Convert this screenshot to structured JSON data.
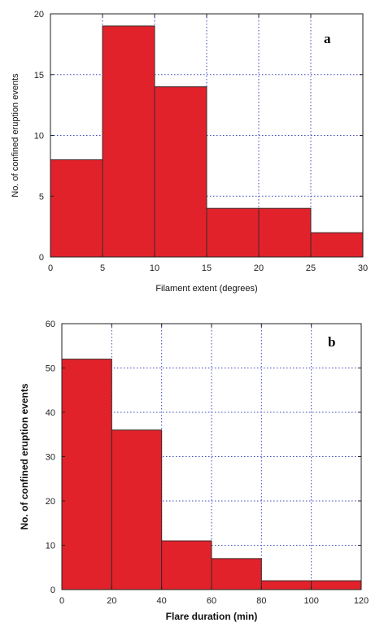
{
  "colors": {
    "bar_fill": "#e2222b",
    "bar_stroke": "#3a2a2a",
    "grid": "#3a48b8",
    "frame": "#222222"
  },
  "chart_data": [
    {
      "type": "bar",
      "panel_label": "a",
      "bin_edges": [
        0,
        5,
        10,
        15,
        20,
        25,
        30
      ],
      "values": [
        8,
        19,
        14,
        4,
        4,
        2
      ],
      "xlabel": "Filament extent (degrees)",
      "ylabel": "No. of confined eruption events",
      "xlim": [
        0,
        30
      ],
      "ylim": [
        0,
        20
      ],
      "xticks": [
        0,
        5,
        10,
        15,
        20,
        25,
        30
      ],
      "yticks": [
        0,
        5,
        10,
        15,
        20
      ],
      "grid": true,
      "grid_style": "dotted"
    },
    {
      "type": "bar",
      "panel_label": "b",
      "bin_edges": [
        0,
        20,
        40,
        60,
        80,
        100,
        120
      ],
      "values": [
        52,
        36,
        11,
        7,
        2,
        2
      ],
      "xlabel": "Flare duration (min)",
      "ylabel": "No. of  confined eruption events",
      "xlim": [
        0,
        120
      ],
      "ylim": [
        0,
        60
      ],
      "xticks": [
        0,
        20,
        40,
        60,
        80,
        100,
        120
      ],
      "yticks": [
        0,
        10,
        20,
        30,
        40,
        50,
        60
      ],
      "grid": true,
      "grid_style": "dotted"
    }
  ]
}
